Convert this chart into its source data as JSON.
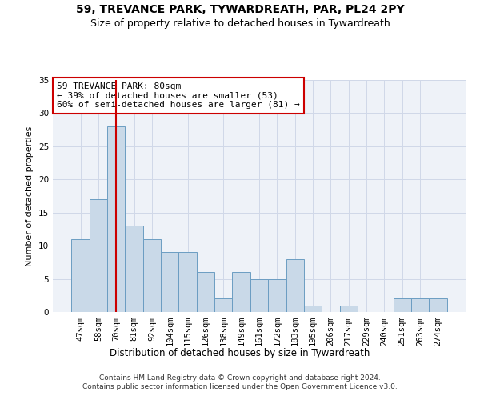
{
  "title1": "59, TREVANCE PARK, TYWARDREATH, PAR, PL24 2PY",
  "title2": "Size of property relative to detached houses in Tywardreath",
  "xlabel": "Distribution of detached houses by size in Tywardreath",
  "ylabel": "Number of detached properties",
  "categories": [
    "47sqm",
    "58sqm",
    "70sqm",
    "81sqm",
    "92sqm",
    "104sqm",
    "115sqm",
    "126sqm",
    "138sqm",
    "149sqm",
    "161sqm",
    "172sqm",
    "183sqm",
    "195sqm",
    "206sqm",
    "217sqm",
    "229sqm",
    "240sqm",
    "251sqm",
    "263sqm",
    "274sqm"
  ],
  "values": [
    11,
    17,
    28,
    13,
    11,
    9,
    9,
    6,
    2,
    6,
    5,
    5,
    8,
    1,
    0,
    1,
    0,
    0,
    2,
    2,
    2
  ],
  "bar_color": "#c9d9e8",
  "bar_edge_color": "#6b9dc2",
  "vline_x": 2.0,
  "vline_color": "#cc0000",
  "annotation_text": "59 TREVANCE PARK: 80sqm\n← 39% of detached houses are smaller (53)\n60% of semi-detached houses are larger (81) →",
  "annotation_box_color": "#cc0000",
  "ylim": [
    0,
    35
  ],
  "yticks": [
    0,
    5,
    10,
    15,
    20,
    25,
    30,
    35
  ],
  "grid_color": "#d0d8e8",
  "background_color": "#eef2f8",
  "footer_text": "Contains HM Land Registry data © Crown copyright and database right 2024.\nContains public sector information licensed under the Open Government Licence v3.0.",
  "title1_fontsize": 10,
  "title2_fontsize": 9,
  "xlabel_fontsize": 8.5,
  "ylabel_fontsize": 8,
  "tick_fontsize": 7.5,
  "annotation_fontsize": 8,
  "footer_fontsize": 6.5
}
